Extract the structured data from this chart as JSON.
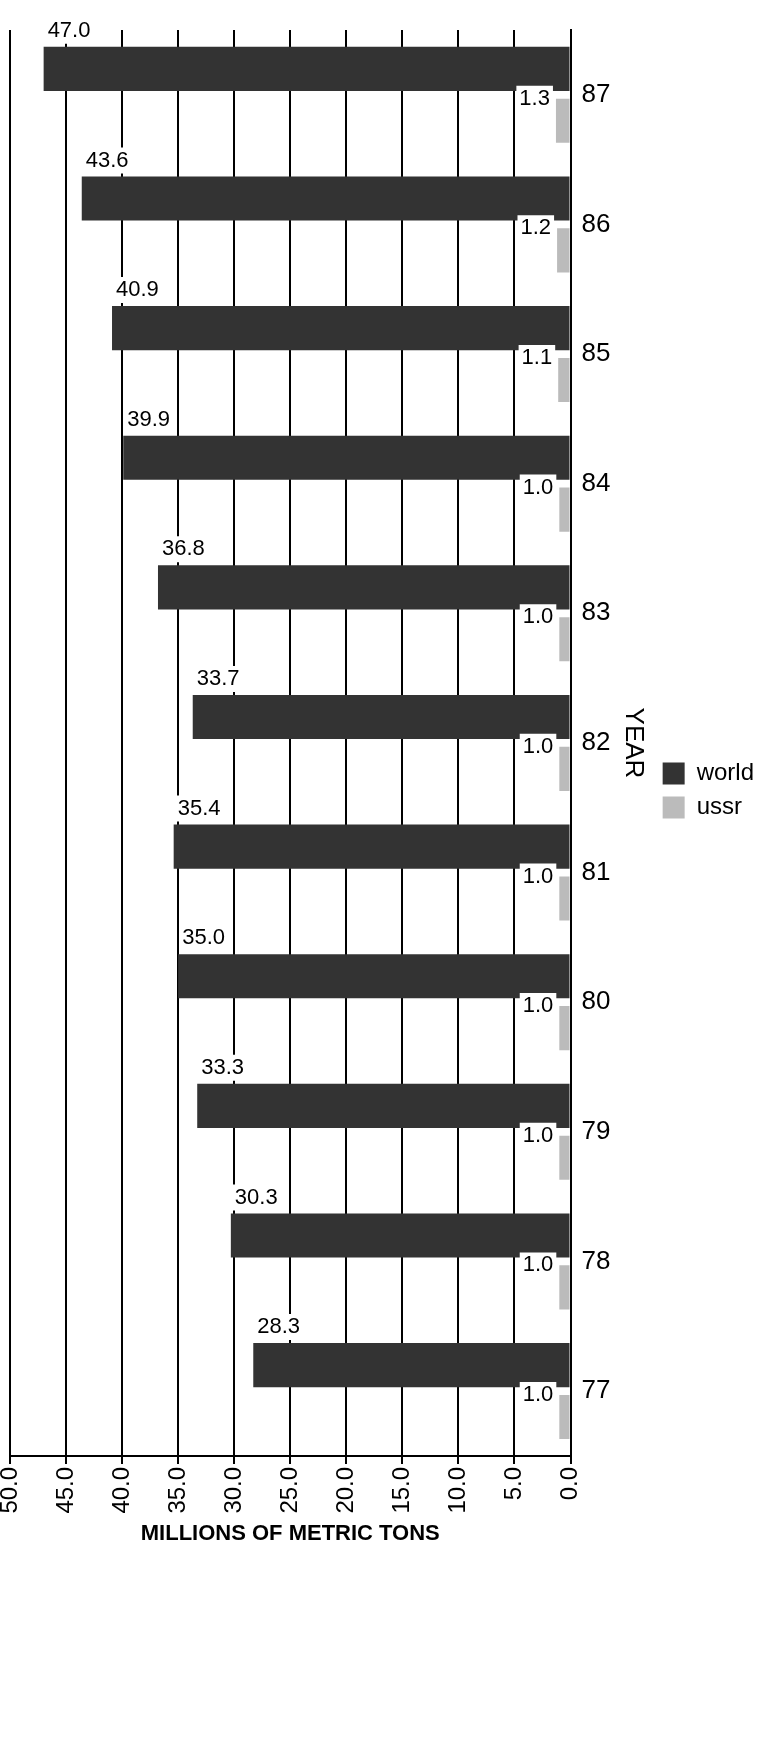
{
  "chart_data": {
    "type": "bar",
    "orientation": "horizontal",
    "xlabel": "MILLIONS OF METRIC TONS",
    "ylabel": "YEAR",
    "categories": [
      "87",
      "86",
      "85",
      "84",
      "83",
      "82",
      "81",
      "80",
      "79",
      "78",
      "77"
    ],
    "series": [
      {
        "name": "world",
        "color": "#333333",
        "values": [
          47.0,
          43.6,
          40.9,
          39.9,
          36.8,
          33.7,
          35.4,
          35.0,
          33.3,
          30.3,
          28.3
        ],
        "value_labels": [
          "47.0",
          "43.6",
          "40.9",
          "39.9",
          "36.8",
          "33.7",
          "35.4",
          "35.0",
          "33.3",
          "30.3",
          "28.3"
        ]
      },
      {
        "name": "ussr",
        "color": "#bbbbbb",
        "values": [
          1.3,
          1.2,
          1.1,
          1.0,
          1.0,
          1.0,
          1.0,
          1.0,
          1.0,
          1.0,
          1.0
        ],
        "value_labels": [
          "1.3",
          "1.2",
          "1.1",
          "1.0",
          "1.0",
          "1.0",
          "1.0",
          "1.0",
          "1.0",
          "1.0",
          "1.0"
        ]
      }
    ],
    "xlim": [
      50,
      0
    ],
    "xticks": [
      {
        "value": 50,
        "label": "50.0"
      },
      {
        "value": 45,
        "label": "45.0"
      },
      {
        "value": 40,
        "label": "40.0"
      },
      {
        "value": 35,
        "label": "35.0"
      },
      {
        "value": 30,
        "label": "30.0"
      },
      {
        "value": 25,
        "label": "25.0"
      },
      {
        "value": 20,
        "label": "20.0"
      },
      {
        "value": 15,
        "label": "15.0"
      },
      {
        "value": 10,
        "label": "10.0"
      },
      {
        "value": 5,
        "label": "5.0"
      },
      {
        "value": 0,
        "label": "0.0"
      }
    ],
    "grid": "x",
    "legend": "right"
  }
}
